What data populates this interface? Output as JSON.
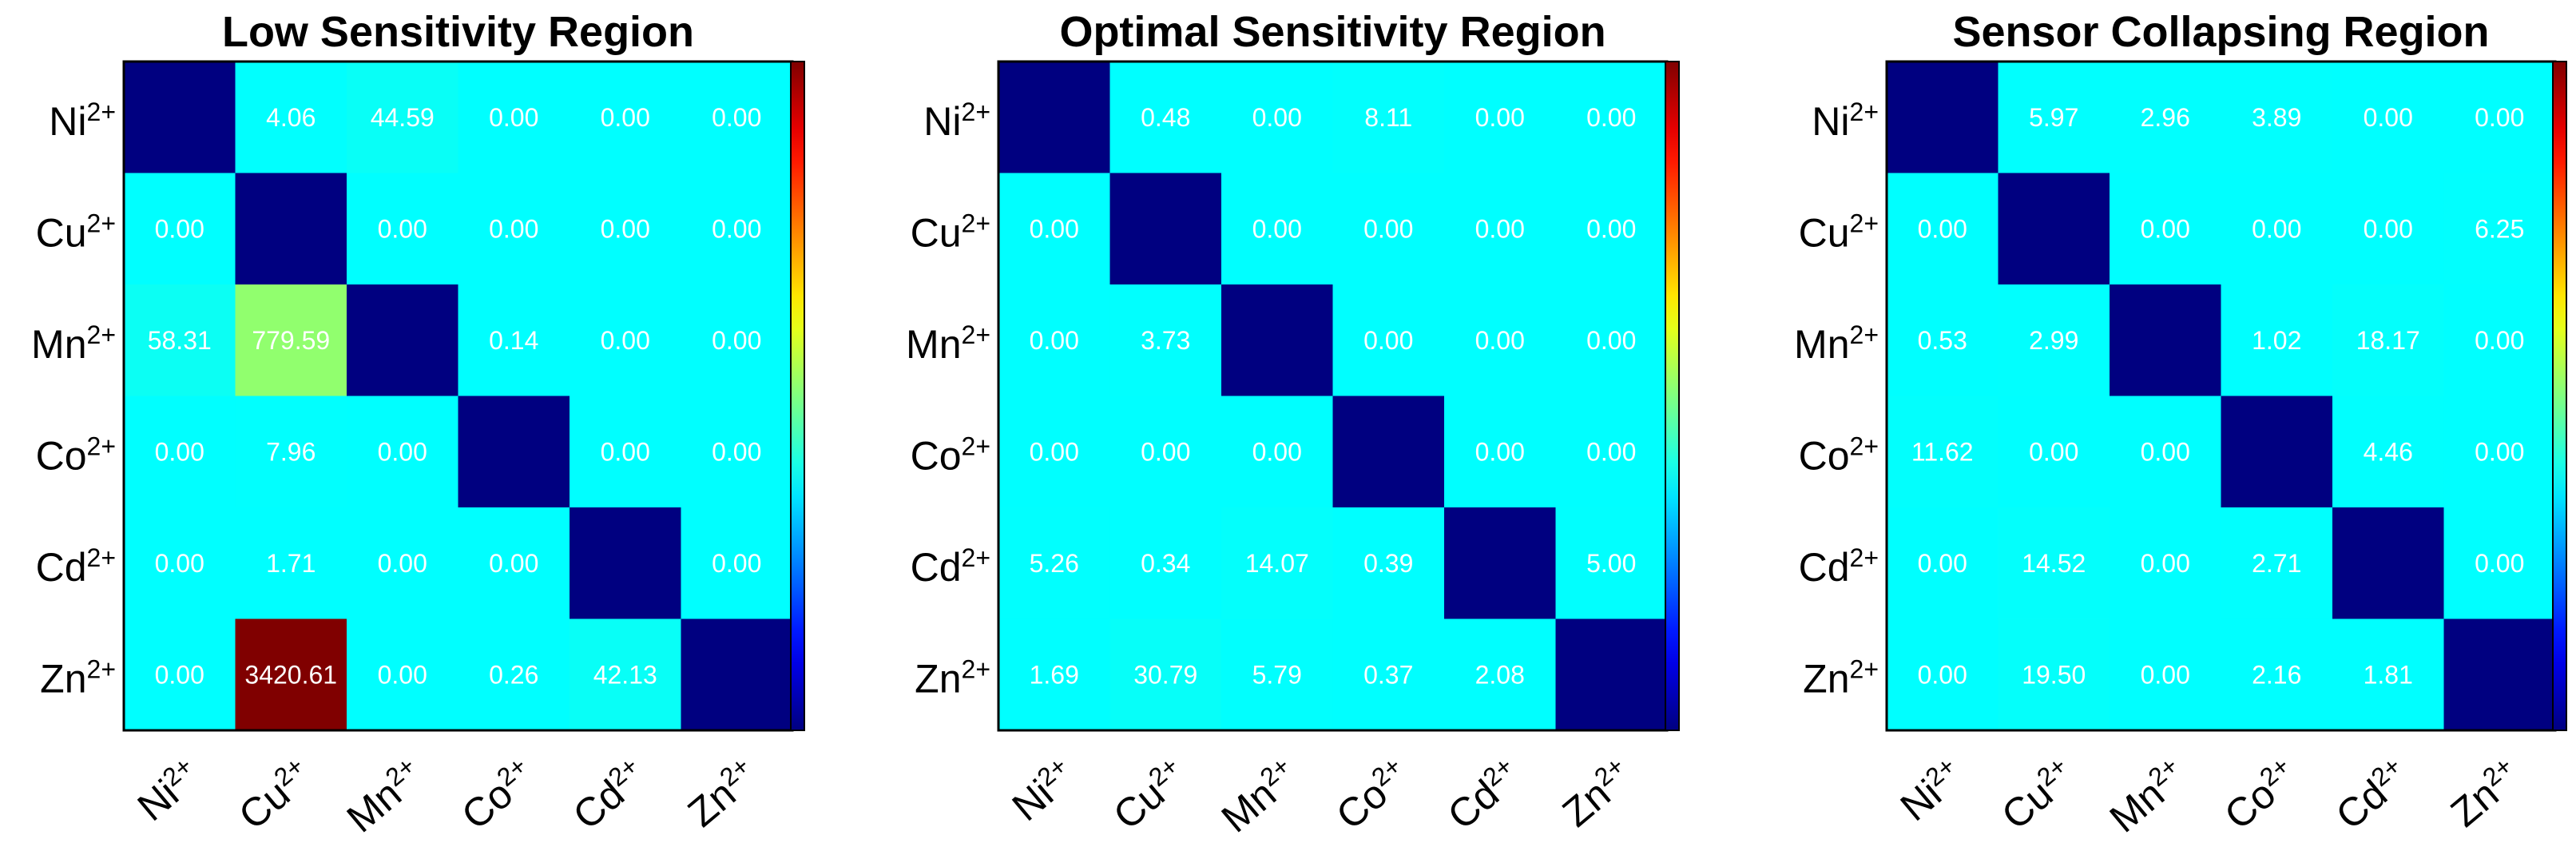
{
  "chart_data": [
    {
      "type": "heatmap",
      "title": "Low Sensitivity Region",
      "rows": [
        [
          "Ni",
          "2+"
        ],
        [
          "Cu",
          "2+"
        ],
        [
          "Mn",
          "2+"
        ],
        [
          "Co",
          "2+"
        ],
        [
          "Cd",
          "2+"
        ],
        [
          "Zn",
          "2+"
        ]
      ],
      "cols": [
        [
          "Ni",
          "2+"
        ],
        [
          "Cu",
          "2+"
        ],
        [
          "Mn",
          "2+"
        ],
        [
          "Co",
          "2+"
        ],
        [
          "Cd",
          "2+"
        ],
        [
          "Zn",
          "2+"
        ]
      ],
      "values": [
        [
          null,
          4.06,
          44.59,
          0.0,
          0.0,
          0.0
        ],
        [
          0.0,
          null,
          0.0,
          0.0,
          0.0,
          0.0
        ],
        [
          58.31,
          779.59,
          null,
          0.14,
          0.0,
          0.0
        ],
        [
          0.0,
          7.96,
          0.0,
          null,
          0.0,
          0.0
        ],
        [
          0.0,
          1.71,
          0.0,
          0.0,
          null,
          0.0
        ],
        [
          0.0,
          3420.61,
          0.0,
          0.26,
          42.13,
          null
        ]
      ],
      "labels": [
        [
          "",
          "4.06",
          "44.59",
          "0.00",
          "0.00",
          "0.00"
        ],
        [
          "0.00",
          "",
          "0.00",
          "0.00",
          "0.00",
          "0.00"
        ],
        [
          "58.31",
          "779.59",
          "",
          "0.14",
          "0.00",
          "0.00"
        ],
        [
          "0.00",
          "7.96",
          "0.00",
          "",
          "0.00",
          "0.00"
        ],
        [
          "0.00",
          "1.71",
          "0.00",
          "0.00",
          "",
          "0.00"
        ],
        [
          "0.00",
          "3420.61",
          "0.00",
          "0.26",
          "42.13",
          ""
        ]
      ],
      "vmax": 3420.61,
      "colormap": "jet",
      "diagonal_color": "#000080",
      "colorbar": true
    },
    {
      "type": "heatmap",
      "title": "Optimal Sensitivity Region",
      "rows": [
        [
          "Ni",
          "2+"
        ],
        [
          "Cu",
          "2+"
        ],
        [
          "Mn",
          "2+"
        ],
        [
          "Co",
          "2+"
        ],
        [
          "Cd",
          "2+"
        ],
        [
          "Zn",
          "2+"
        ]
      ],
      "cols": [
        [
          "Ni",
          "2+"
        ],
        [
          "Cu",
          "2+"
        ],
        [
          "Mn",
          "2+"
        ],
        [
          "Co",
          "2+"
        ],
        [
          "Cd",
          "2+"
        ],
        [
          "Zn",
          "2+"
        ]
      ],
      "values": [
        [
          null,
          0.48,
          0.0,
          8.11,
          0.0,
          0.0
        ],
        [
          0.0,
          null,
          0.0,
          0.0,
          0.0,
          0.0
        ],
        [
          0.0,
          3.73,
          null,
          0.0,
          0.0,
          0.0
        ],
        [
          0.0,
          0.0,
          0.0,
          null,
          0.0,
          0.0
        ],
        [
          5.26,
          0.34,
          14.07,
          0.39,
          null,
          5.0
        ],
        [
          1.69,
          30.79,
          5.79,
          0.37,
          2.08,
          null
        ]
      ],
      "labels": [
        [
          "",
          "0.48",
          "0.00",
          "8.11",
          "0.00",
          "0.00"
        ],
        [
          "0.00",
          "",
          "0.00",
          "0.00",
          "0.00",
          "0.00"
        ],
        [
          "0.00",
          "3.73",
          "",
          "0.00",
          "0.00",
          "0.00"
        ],
        [
          "0.00",
          "0.00",
          "0.00",
          "",
          "0.00",
          "0.00"
        ],
        [
          "5.26",
          "0.34",
          "14.07",
          "0.39",
          "",
          "5.00"
        ],
        [
          "1.69",
          "30.79",
          "5.79",
          "0.37",
          "2.08",
          ""
        ]
      ],
      "vmax": 3420.61,
      "colormap": "jet",
      "diagonal_color": "#000080",
      "colorbar": true
    },
    {
      "type": "heatmap",
      "title": "Sensor Collapsing Region",
      "rows": [
        [
          "Ni",
          "2+"
        ],
        [
          "Cu",
          "2+"
        ],
        [
          "Mn",
          "2+"
        ],
        [
          "Co",
          "2+"
        ],
        [
          "Cd",
          "2+"
        ],
        [
          "Zn",
          "2+"
        ]
      ],
      "cols": [
        [
          "Ni",
          "2+"
        ],
        [
          "Cu",
          "2+"
        ],
        [
          "Mn",
          "2+"
        ],
        [
          "Co",
          "2+"
        ],
        [
          "Cd",
          "2+"
        ],
        [
          "Zn",
          "2+"
        ]
      ],
      "values": [
        [
          null,
          5.97,
          2.96,
          3.89,
          0.0,
          0.0
        ],
        [
          0.0,
          null,
          0.0,
          0.0,
          0.0,
          6.25
        ],
        [
          0.53,
          2.99,
          null,
          1.02,
          18.17,
          0.0
        ],
        [
          11.62,
          0.0,
          0.0,
          null,
          4.46,
          0.0
        ],
        [
          0.0,
          14.52,
          0.0,
          2.71,
          null,
          0.0
        ],
        [
          0.0,
          19.5,
          0.0,
          2.16,
          1.81,
          null
        ]
      ],
      "labels": [
        [
          "",
          "5.97",
          "2.96",
          "3.89",
          "0.00",
          "0.00"
        ],
        [
          "0.00",
          "",
          "0.00",
          "0.00",
          "0.00",
          "6.25"
        ],
        [
          "0.53",
          "2.99",
          "",
          "1.02",
          "18.17",
          "0.00"
        ],
        [
          "11.62",
          "0.00",
          "0.00",
          "",
          "4.46",
          "0.00"
        ],
        [
          "0.00",
          "14.52",
          "0.00",
          "2.71",
          "",
          "0.00"
        ],
        [
          "0.00",
          "19.50",
          "0.00",
          "2.16",
          "1.81",
          ""
        ]
      ],
      "vmax": 3420.61,
      "colormap": "jet",
      "diagonal_color": "#000080",
      "colorbar": true
    }
  ]
}
